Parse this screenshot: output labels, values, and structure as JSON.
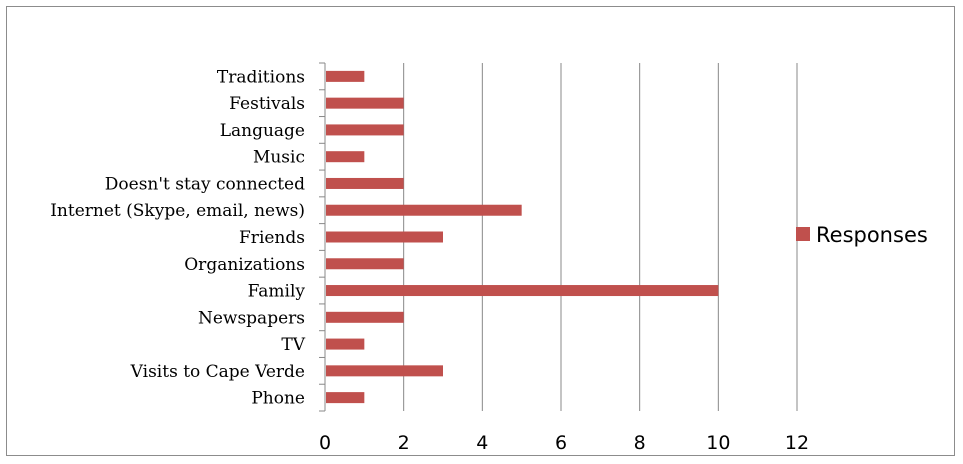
{
  "chart_data": {
    "type": "bar",
    "orientation": "horizontal",
    "categories": [
      "Traditions",
      "Festivals",
      "Language",
      "Music",
      "Doesn't stay connected",
      "Internet (Skype, email, news)",
      "Friends",
      "Organizations",
      "Family",
      "Newspapers",
      "TV",
      "Visits to Cape Verde",
      "Phone"
    ],
    "series": [
      {
        "name": "Responses",
        "values": [
          1,
          2,
          2,
          1,
          2,
          5,
          3,
          2,
          10,
          2,
          1,
          3,
          1
        ],
        "color": "#c0504d"
      }
    ],
    "xlim": [
      0,
      12
    ],
    "xticks": [
      0,
      2,
      4,
      6,
      8,
      10,
      12
    ],
    "grid": "vertical",
    "legend_position": "right",
    "gridline_color": "#888888"
  }
}
